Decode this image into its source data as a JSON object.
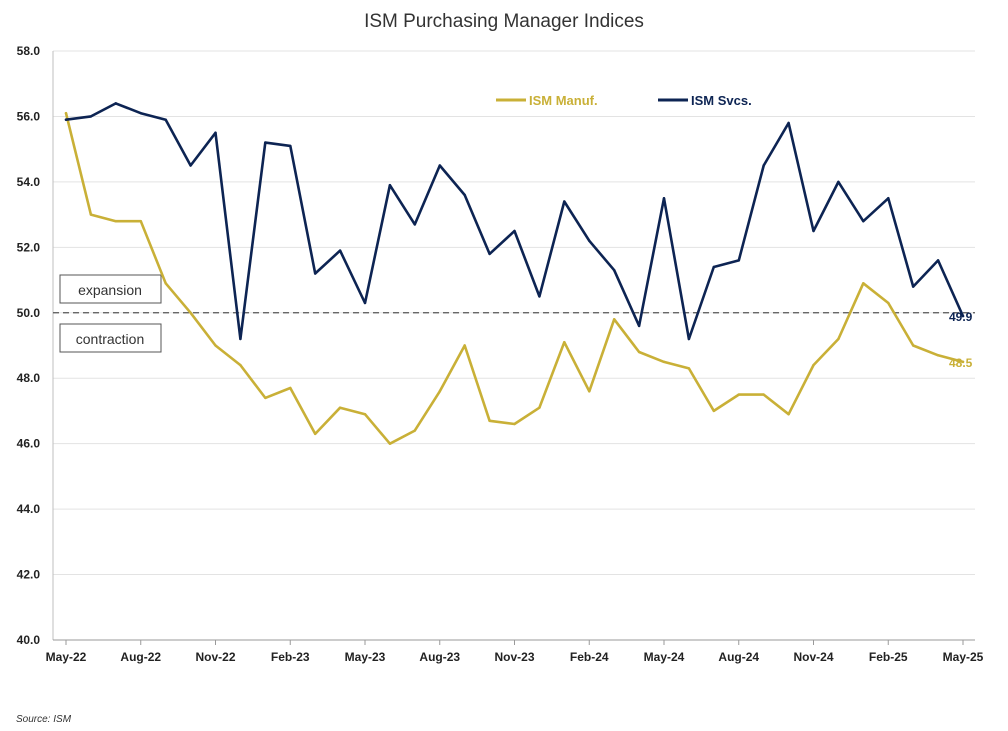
{
  "chart_data": {
    "type": "line",
    "title": "ISM Purchasing Manager Indices",
    "source": "Source: ISM",
    "ylim": [
      40,
      58
    ],
    "yticks": [
      "40.0",
      "42.0",
      "44.0",
      "46.0",
      "48.0",
      "50.0",
      "52.0",
      "54.0",
      "56.0",
      "58.0"
    ],
    "xtick_labels": [
      "May-22",
      "Aug-22",
      "Nov-22",
      "Feb-23",
      "May-23",
      "Aug-23",
      "Nov-23",
      "Feb-24",
      "May-24",
      "Aug-24",
      "Nov-24",
      "Feb-25",
      "May-25"
    ],
    "x": [
      "May-22",
      "Jun-22",
      "Jul-22",
      "Aug-22",
      "Sep-22",
      "Oct-22",
      "Nov-22",
      "Dec-22",
      "Jan-23",
      "Feb-23",
      "Mar-23",
      "Apr-23",
      "May-23",
      "Jun-23",
      "Jul-23",
      "Aug-23",
      "Sep-23",
      "Oct-23",
      "Nov-23",
      "Dec-23",
      "Jan-24",
      "Feb-24",
      "Mar-24",
      "Apr-24",
      "May-24",
      "Jun-24",
      "Jul-24",
      "Aug-24",
      "Sep-24",
      "Oct-24",
      "Nov-24",
      "Dec-24",
      "Jan-25",
      "Feb-25",
      "Mar-25",
      "Apr-25",
      "May-25"
    ],
    "reference_line": {
      "value": 50.0,
      "style": "dashed"
    },
    "zone_labels": {
      "above": "expansion",
      "below": "contraction"
    },
    "legend_position": "top-center",
    "grid": "horizontal",
    "series": [
      {
        "name": "ISM Manuf.",
        "color": "#c9b037",
        "end_label": "48.5",
        "values": [
          56.1,
          53.0,
          52.8,
          52.8,
          50.9,
          50.0,
          49.0,
          48.4,
          47.4,
          47.7,
          46.3,
          47.1,
          46.9,
          46.0,
          46.4,
          47.6,
          49.0,
          46.7,
          46.6,
          47.1,
          49.1,
          47.6,
          49.8,
          48.8,
          48.5,
          48.3,
          47.0,
          47.5,
          47.5,
          46.9,
          48.4,
          49.2,
          50.9,
          50.3,
          49.0,
          48.7,
          48.5
        ]
      },
      {
        "name": "ISM Svcs.",
        "color": "#0d2453",
        "end_label": "49.9",
        "values": [
          55.9,
          56.0,
          56.4,
          56.1,
          55.9,
          54.5,
          55.5,
          49.2,
          55.2,
          55.1,
          51.2,
          51.9,
          50.3,
          53.9,
          52.7,
          54.5,
          53.6,
          51.8,
          52.5,
          50.5,
          53.4,
          52.2,
          51.3,
          49.6,
          53.5,
          49.2,
          51.4,
          51.6,
          54.5,
          55.8,
          52.5,
          54.0,
          52.8,
          53.5,
          50.8,
          51.6,
          49.9
        ]
      }
    ]
  }
}
